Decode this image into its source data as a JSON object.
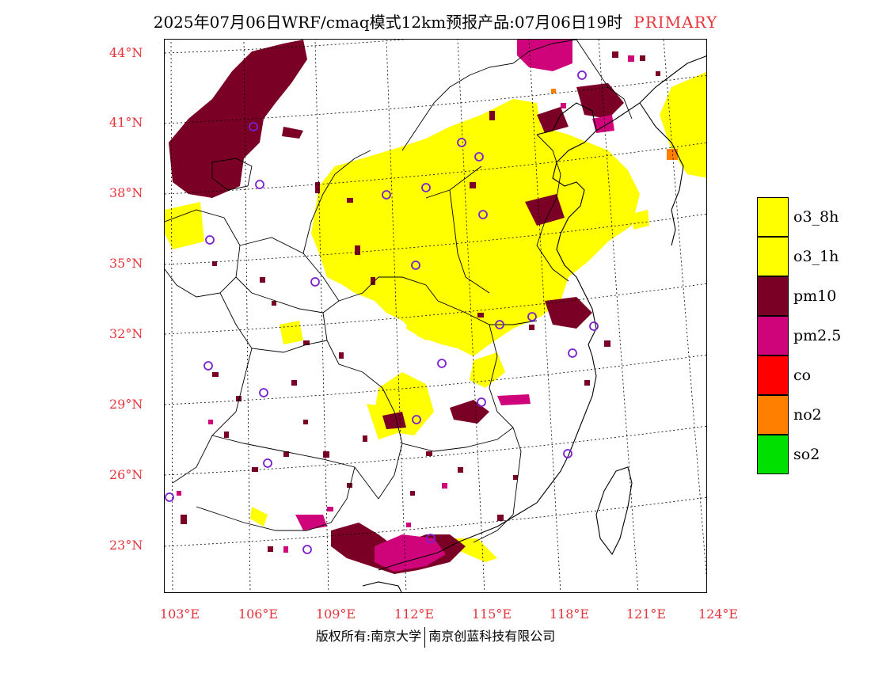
{
  "title": {
    "text": "2025年07月06日WRF/cmaq模式12km预报产品:07月06日19时",
    "tag": "PRIMARY"
  },
  "lat_labels": [
    "44°N",
    "41°N",
    "38°N",
    "35°N",
    "32°N",
    "29°N",
    "26°N",
    "23°N"
  ],
  "lon_labels": [
    "103°E",
    "106°E",
    "109°E",
    "112°E",
    "115°E",
    "118°E",
    "121°E",
    "124°E"
  ],
  "legend": [
    {
      "label": "o3_8h",
      "color": "#ffff00"
    },
    {
      "label": "o3_1h",
      "color": "#ffff00"
    },
    {
      "label": "pm10",
      "color": "#7a0026"
    },
    {
      "label": "pm2.5",
      "color": "#d0047a"
    },
    {
      "label": "co",
      "color": "#ff0000"
    },
    {
      "label": "no2",
      "color": "#ff7f00"
    },
    {
      "label": "so2",
      "color": "#00e000"
    }
  ],
  "footer": {
    "left": "版权所有:南京大学",
    "right": "南京创蓝科技有限公司"
  }
}
